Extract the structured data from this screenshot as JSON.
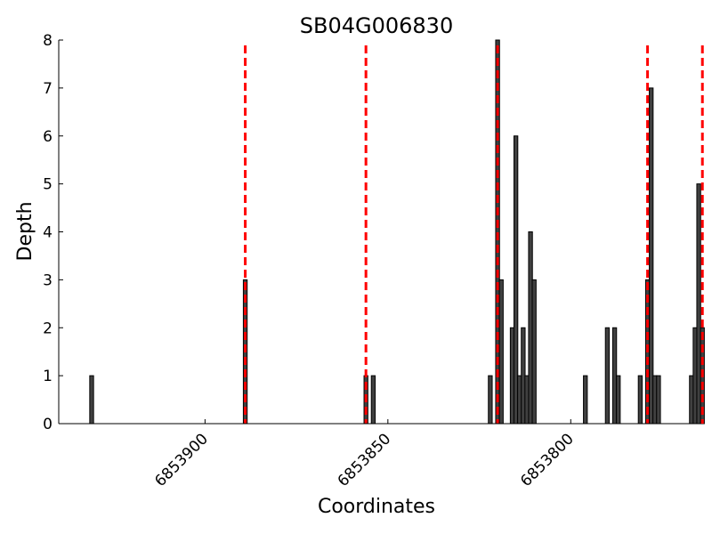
{
  "chart_data": {
    "type": "bar",
    "title": "SB04G006830",
    "xlabel": "Coordinates",
    "ylabel": "Depth",
    "x_reversed": true,
    "xlim": [
      6853940,
      6853766
    ],
    "ylim": [
      0,
      8
    ],
    "y_ticks": [
      0,
      1,
      2,
      3,
      4,
      5,
      6,
      7,
      8
    ],
    "x_ticks": [
      6853900,
      6853850,
      6853800
    ],
    "x_tick_labels": [
      "6853900",
      "6853850",
      "6853800"
    ],
    "grid": false,
    "bar_color": "#404040",
    "bars": [
      {
        "x": 6853931,
        "depth": 1
      },
      {
        "x": 6853889,
        "depth": 3
      },
      {
        "x": 6853856,
        "depth": 1
      },
      {
        "x": 6853854,
        "depth": 1
      },
      {
        "x": 6853822,
        "depth": 1
      },
      {
        "x": 6853820,
        "depth": 8
      },
      {
        "x": 6853819,
        "depth": 3
      },
      {
        "x": 6853816,
        "depth": 2
      },
      {
        "x": 6853815,
        "depth": 6
      },
      {
        "x": 6853814,
        "depth": 1
      },
      {
        "x": 6853813,
        "depth": 2
      },
      {
        "x": 6853812,
        "depth": 1
      },
      {
        "x": 6853811,
        "depth": 4
      },
      {
        "x": 6853810,
        "depth": 3
      },
      {
        "x": 6853796,
        "depth": 1
      },
      {
        "x": 6853790,
        "depth": 2
      },
      {
        "x": 6853788,
        "depth": 2
      },
      {
        "x": 6853787,
        "depth": 1
      },
      {
        "x": 6853781,
        "depth": 1
      },
      {
        "x": 6853779,
        "depth": 3
      },
      {
        "x": 6853778,
        "depth": 7
      },
      {
        "x": 6853777,
        "depth": 1
      },
      {
        "x": 6853776,
        "depth": 1
      },
      {
        "x": 6853767,
        "depth": 1
      },
      {
        "x": 6853766,
        "depth": 2
      },
      {
        "x": 6853765,
        "depth": 5
      },
      {
        "x": 6853764,
        "depth": 2
      }
    ],
    "reference_lines": {
      "color": "#ff0000",
      "style": "dashed",
      "x": [
        6853889,
        6853856,
        6853820,
        6853779,
        6853764
      ]
    }
  }
}
